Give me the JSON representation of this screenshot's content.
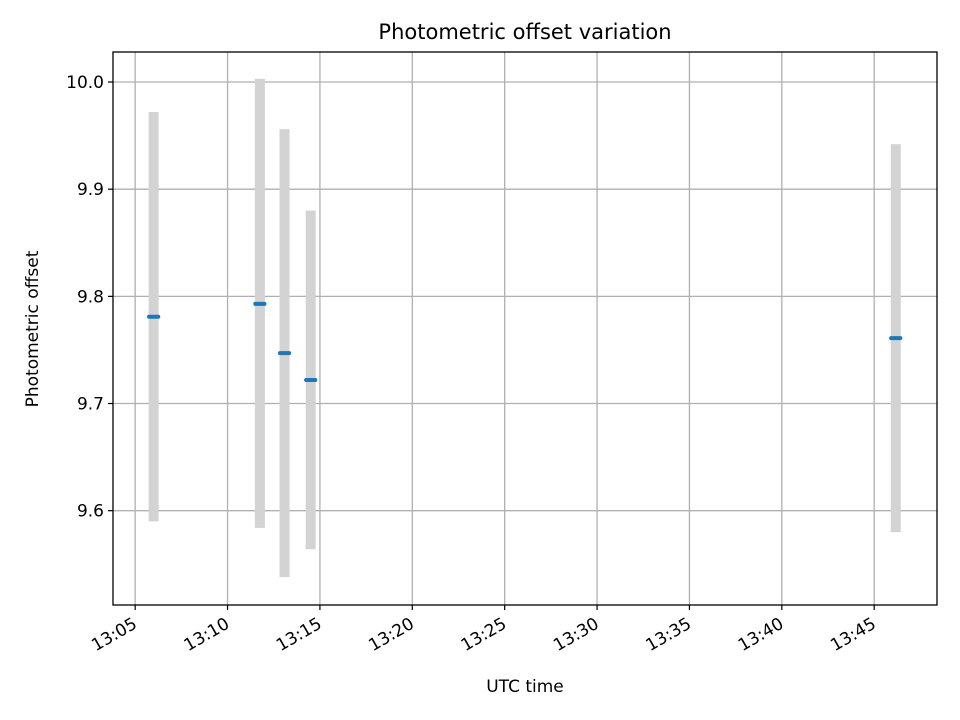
{
  "chart_data": {
    "type": "scatter",
    "title": "Photometric offset variation",
    "xlabel": "UTC time",
    "ylabel": "Photometric offset",
    "xlim": [
      "13:03:48",
      "13:48:24"
    ],
    "ylim": [
      9.512,
      10.028
    ],
    "x_ticks": [
      "13:05",
      "13:10",
      "13:15",
      "13:20",
      "13:25",
      "13:30",
      "13:35",
      "13:40",
      "13:45"
    ],
    "y_ticks": [
      "9.6",
      "9.7",
      "9.8",
      "9.9",
      "10.0"
    ],
    "grid": true,
    "colors": {
      "point": "#1f77b4",
      "errorbar": "#d3d3d3"
    },
    "series": [
      {
        "points": [
          {
            "x": "13:06:00",
            "start": "13:05:45",
            "end": "13:06:15",
            "y": 9.781,
            "low": 9.59,
            "high": 9.972
          },
          {
            "x": "13:11:45",
            "start": "13:11:30",
            "end": "13:12:00",
            "y": 9.793,
            "low": 9.584,
            "high": 10.003
          },
          {
            "x": "13:13:05",
            "start": "13:12:50",
            "end": "13:13:20",
            "y": 9.747,
            "low": 9.538,
            "high": 9.956
          },
          {
            "x": "13:14:30",
            "start": "13:14:15",
            "end": "13:14:45",
            "y": 9.722,
            "low": 9.564,
            "high": 9.88
          },
          {
            "x": "13:46:10",
            "start": "13:45:55",
            "end": "13:46:25",
            "y": 9.761,
            "low": 9.58,
            "high": 9.942
          }
        ]
      }
    ]
  }
}
